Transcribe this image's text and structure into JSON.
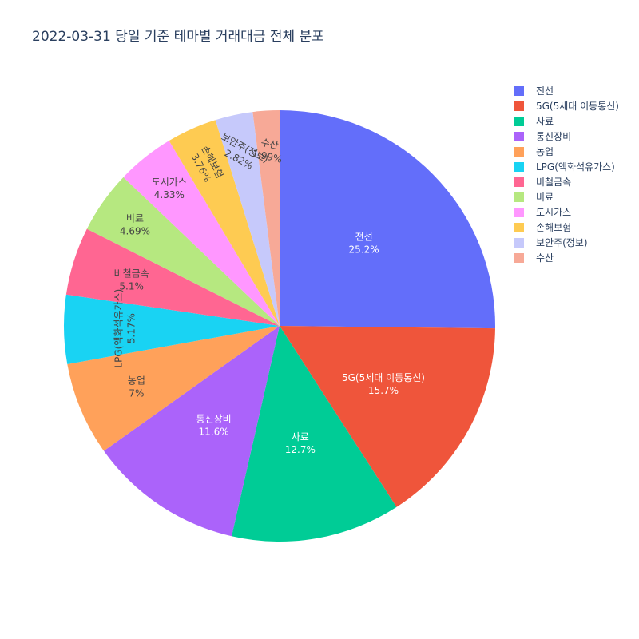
{
  "chart_data": {
    "type": "pie",
    "title": "2022-03-31 당일 기준 테마별 거래대금 전체 분포",
    "slices": [
      {
        "label": "전선",
        "value": 25.2,
        "pct_label": "25.2%",
        "color": "#636efa"
      },
      {
        "label": "5G(5세대 이동통신)",
        "value": 15.7,
        "pct_label": "15.7%",
        "color": "#EF553B"
      },
      {
        "label": "사료",
        "value": 12.7,
        "pct_label": "12.7%",
        "color": "#00cc96"
      },
      {
        "label": "통신장비",
        "value": 11.6,
        "pct_label": "11.6%",
        "color": "#ab63fa"
      },
      {
        "label": "농업",
        "value": 7.0,
        "pct_label": "7%",
        "color": "#FFA15A"
      },
      {
        "label": "LPG(액화석유가스)",
        "value": 5.17,
        "pct_label": "5.17%",
        "color": "#19d3f3"
      },
      {
        "label": "비철금속",
        "value": 5.1,
        "pct_label": "5.1%",
        "color": "#FF6692"
      },
      {
        "label": "비료",
        "value": 4.69,
        "pct_label": "4.69%",
        "color": "#B6E880"
      },
      {
        "label": "도시가스",
        "value": 4.33,
        "pct_label": "4.33%",
        "color": "#FF97FF"
      },
      {
        "label": "손해보험",
        "value": 3.76,
        "pct_label": "3.76%",
        "color": "#FECB52"
      },
      {
        "label": "보안주(정보)",
        "value": 2.82,
        "pct_label": "2.82%",
        "color": "#c6c9fb"
      },
      {
        "label": "수산",
        "value": 1.99,
        "pct_label": "1.99%",
        "color": "#f7a997"
      }
    ],
    "legend_position": "top-right",
    "direction": "clockwise",
    "start": "12 o'clock"
  }
}
